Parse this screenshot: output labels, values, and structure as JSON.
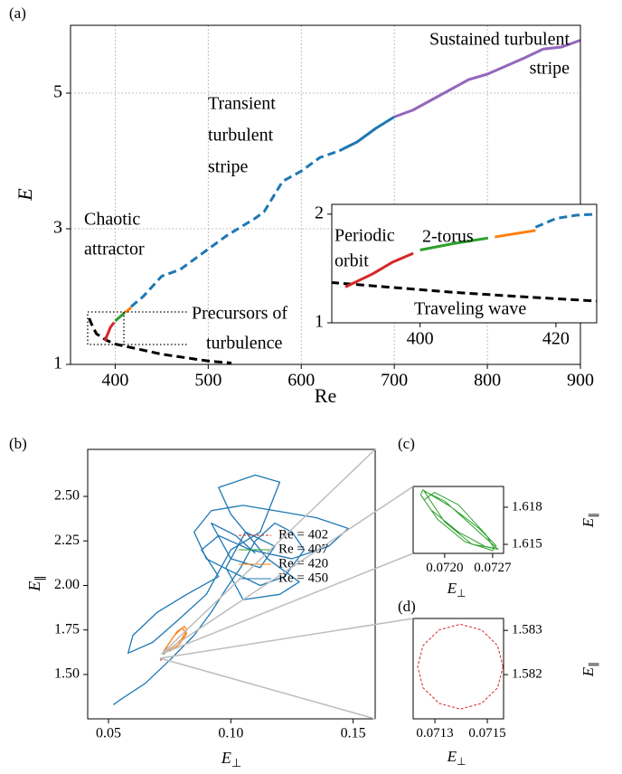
{
  "chart_data": [
    {
      "type": "line",
      "label": "(a)",
      "xlabel": "Re",
      "ylabel": "E",
      "grid": true,
      "xlim": [
        352,
        900
      ],
      "ylim": [
        1,
        6
      ],
      "xticks": [
        400,
        500,
        600,
        700,
        800,
        900
      ],
      "yticks": [
        1,
        3,
        5
      ],
      "series": [
        {
          "color": "#000000",
          "dashed": true,
          "x": [
            372,
            376,
            380,
            390,
            400,
            420,
            450,
            480,
            500,
            525
          ],
          "values": [
            1.68,
            1.55,
            1.45,
            1.36,
            1.3,
            1.24,
            1.15,
            1.09,
            1.05,
            1.02
          ]
        },
        {
          "color": "#d62728",
          "x": [
            389,
            392,
            395,
            399
          ],
          "values": [
            1.35,
            1.45,
            1.55,
            1.62
          ]
        },
        {
          "color": "#2ca02c",
          "x": [
            400,
            405,
            410
          ],
          "values": [
            1.64,
            1.7,
            1.76
          ]
        },
        {
          "color": "#ff7f0e",
          "x": [
            411,
            414,
            417
          ],
          "values": [
            1.77,
            1.8,
            1.84
          ]
        },
        {
          "color": "#1f77b4",
          "dashed": true,
          "x": [
            417,
            430,
            450,
            470,
            490,
            520,
            550,
            560,
            580,
            600,
            620,
            641
          ],
          "values": [
            1.85,
            2.0,
            2.3,
            2.4,
            2.6,
            2.9,
            3.15,
            3.25,
            3.7,
            3.85,
            4.05,
            4.15
          ]
        },
        {
          "color": "#1f77b4",
          "x": [
            641,
            660,
            680,
            700
          ],
          "values": [
            4.15,
            4.28,
            4.48,
            4.65
          ]
        },
        {
          "color": "#9467bd",
          "x": [
            700,
            720,
            740,
            760,
            780,
            800,
            820,
            840,
            860,
            880,
            900
          ],
          "values": [
            4.65,
            4.75,
            4.9,
            5.05,
            5.2,
            5.28,
            5.4,
            5.52,
            5.65,
            5.68,
            5.78
          ]
        }
      ],
      "annotations": [
        {
          "lines": [
            "Sustained turbulent",
            "stripe"
          ],
          "color": "#9467bd"
        },
        {
          "lines": [
            "Transient",
            "turbulent",
            "stripe"
          ],
          "color": "#1f77b4"
        },
        {
          "lines": [
            "Chaotic",
            "attractor"
          ],
          "color": "#ff7f0e"
        },
        {
          "lines": [
            "Precursors of",
            "turbulence"
          ],
          "color": "#000000"
        }
      ]
    },
    {
      "type": "line",
      "xlim": [
        387,
        426
      ],
      "ylim": [
        1,
        2.09
      ],
      "xticks": [
        400,
        420
      ],
      "yticks": [
        1,
        2
      ],
      "series": [
        {
          "color": "#000000",
          "dashed": true,
          "x": [
            385,
            395,
            405,
            415,
            426
          ],
          "values": [
            1.38,
            1.33,
            1.28,
            1.24,
            1.2
          ]
        },
        {
          "color": "#d62728",
          "x": [
            389,
            393,
            396,
            399
          ],
          "values": [
            1.33,
            1.45,
            1.56,
            1.64
          ]
        },
        {
          "color": "#2ca02c",
          "x": [
            400,
            405,
            410
          ],
          "values": [
            1.67,
            1.73,
            1.78
          ]
        },
        {
          "color": "#ff7f0e",
          "x": [
            411,
            414,
            417
          ],
          "values": [
            1.79,
            1.82,
            1.85
          ]
        },
        {
          "color": "#1f77b4",
          "dashed": true,
          "x": [
            417,
            420,
            423,
            426
          ],
          "values": [
            1.88,
            1.96,
            1.99,
            2.0
          ]
        }
      ],
      "annotations": [
        {
          "lines": [
            "Periodic",
            "orbit"
          ],
          "color": "#d62728"
        },
        {
          "lines": [
            "2-torus"
          ],
          "color": "#2ca02c"
        },
        {
          "lines": [
            "Traveling wave"
          ],
          "color": "#000000"
        }
      ]
    },
    {
      "type": "line",
      "label": "(b)",
      "xlabel": "E",
      "xlabel_sub": "⊥",
      "ylabel": "E",
      "ylabel_sub": "∥",
      "legend": true,
      "xlim": [
        0.0415,
        0.159
      ],
      "ylim": [
        1.251,
        2.764
      ],
      "xticks": [
        0.05,
        {
          "value": 0.1,
          "label": "0.10"
        },
        0.15
      ],
      "yticks": [
        {
          "value": 1.5,
          "label": "1.50"
        },
        1.75,
        {
          "value": 2.0,
          "label": "2.00"
        },
        2.25,
        {
          "value": 2.5,
          "label": "2.50"
        }
      ],
      "series": [
        {
          "name": "Re = 402",
          "color": "#d62728",
          "dashed": true,
          "x": [
            0.0712,
            0.0716,
            0.0714,
            0.0712
          ],
          "values": [
            1.582,
            1.583,
            1.581,
            1.582
          ]
        },
        {
          "name": "Re = 407",
          "color": "#2ca02c",
          "x": [
            0.0717,
            0.0722,
            0.0727,
            0.0724,
            0.0718,
            0.0717
          ],
          "values": [
            1.619,
            1.617,
            1.615,
            1.616,
            1.618,
            1.619
          ]
        },
        {
          "name": "Re = 420",
          "color": "#ff7f0e",
          "x": [
            0.0725,
            0.075,
            0.078,
            0.081,
            0.082,
            0.08,
            0.076,
            0.073,
            0.074,
            0.077,
            0.08,
            0.082,
            0.079,
            0.075
          ],
          "values": [
            1.63,
            1.68,
            1.74,
            1.77,
            1.75,
            1.7,
            1.65,
            1.62,
            1.66,
            1.72,
            1.76,
            1.73,
            1.67,
            1.63
          ]
        },
        {
          "name": "Re = 450",
          "color": "#1f77b4",
          "x": [
            0.052,
            0.055,
            0.065,
            0.075,
            0.085,
            0.092,
            0.098,
            0.104,
            0.11,
            0.118,
            0.125,
            0.13,
            0.122,
            0.112,
            0.1,
            0.09,
            0.085,
            0.092,
            0.105,
            0.118,
            0.135,
            0.148,
            0.14,
            0.125,
            0.108,
            0.095,
            0.088,
            0.095,
            0.082,
            0.07,
            0.06,
            0.058,
            0.068,
            0.078,
            0.09,
            0.1,
            0.112,
            0.12,
            0.11,
            0.095,
            0.1,
            0.115,
            0.128,
            0.12,
            0.105,
            0.098,
            0.106,
            0.118,
            0.112,
            0.1,
            0.092,
            0.102,
            0.11
          ],
          "values": [
            1.33,
            1.36,
            1.45,
            1.58,
            1.72,
            1.85,
            1.98,
            2.1,
            2.25,
            2.35,
            2.3,
            2.2,
            2.05,
            2.0,
            2.08,
            2.15,
            2.3,
            2.42,
            2.45,
            2.42,
            2.38,
            2.32,
            2.22,
            2.15,
            2.2,
            2.28,
            2.2,
            2.05,
            1.95,
            1.85,
            1.72,
            1.62,
            1.68,
            1.8,
            1.95,
            2.2,
            2.3,
            2.58,
            2.62,
            2.55,
            2.4,
            2.15,
            2.02,
            1.95,
            1.92,
            2.1,
            2.3,
            2.22,
            2.1,
            2.15,
            2.35,
            2.28,
            2.18
          ]
        }
      ]
    },
    {
      "type": "line",
      "label": "(c)",
      "xlabel": "E",
      "xlabel_sub": "⊥",
      "ylabel": "E",
      "ylabel_sub": "∥",
      "yaxis_side": "right",
      "xlim": [
        0.07154,
        0.07286
      ],
      "ylim": [
        1.61427,
        1.61968
      ],
      "xticks": [
        {
          "value": 0.072,
          "label": "0.0720"
        },
        0.0727
      ],
      "yticks": [
        1.618,
        1.615
      ],
      "series": [
        {
          "color": "#2ca02c",
          "x": [
            0.0717,
            0.072,
            0.0724,
            0.0727,
            0.07278,
            0.0726,
            0.0722,
            0.0718,
            0.07165,
            0.07168,
            0.0721,
            0.0725,
            0.07275,
            0.0727,
            0.0723,
            0.0719,
            0.0717,
            0.07185,
            0.0722,
            0.0726,
            0.07272,
            0.0724,
            0.072,
            0.0717
          ],
          "values": [
            1.6193,
            1.6185,
            1.6165,
            1.615,
            1.6146,
            1.6148,
            1.616,
            1.6178,
            1.619,
            1.6194,
            1.618,
            1.6163,
            1.6149,
            1.6145,
            1.6152,
            1.617,
            1.6186,
            1.6192,
            1.6182,
            1.6158,
            1.6147,
            1.615,
            1.6168,
            1.6193
          ]
        }
      ]
    },
    {
      "type": "line",
      "label": "(d)",
      "xlabel": "E",
      "xlabel_sub": "⊥",
      "ylabel": "E",
      "ylabel_sub": "∥",
      "yaxis_side": "right",
      "xlim": [
        0.071217,
        0.071562
      ],
      "ylim": [
        1.581,
        1.58327
      ],
      "xticks": [
        0.0713,
        0.0715
      ],
      "yticks": [
        1.583,
        1.582
      ],
      "series": [
        {
          "color": "#d62728",
          "dashed": true,
          "x": [
            0.07156,
            0.071539,
            0.071478,
            0.071397,
            0.071316,
            0.071255,
            0.071234,
            0.071255,
            0.071316,
            0.071397,
            0.071478,
            0.071539,
            0.07156
          ],
          "values": [
            1.58218,
            1.58266,
            1.58301,
            1.58314,
            1.58301,
            1.58266,
            1.58218,
            1.5817,
            1.58135,
            1.58122,
            1.58135,
            1.5817,
            1.58218
          ]
        }
      ]
    }
  ]
}
